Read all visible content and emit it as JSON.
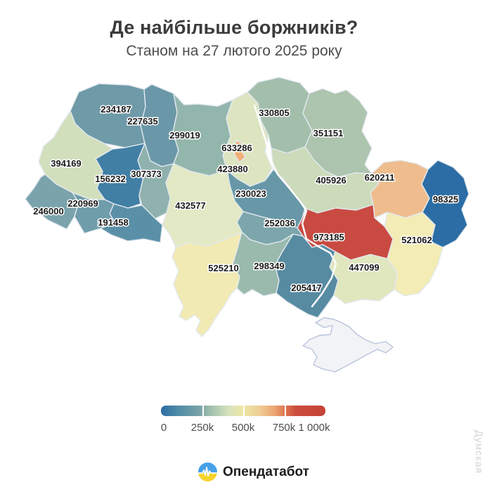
{
  "title": "Де найбільше боржників?",
  "subtitle": "Станом на 27 лютого 2025 року",
  "watermark": "Думская",
  "footer": {
    "brand": "Опендатабот"
  },
  "legend": {
    "ticks": [
      "0",
      "250k",
      "500k",
      "750k",
      "1 000k"
    ]
  },
  "chart_data": {
    "type": "choropleth",
    "title": "Де найбільше боржників?",
    "subtitle": "Станом на 27 лютого 2025 року",
    "unit": "debtors per region",
    "scale": {
      "min": 0,
      "max": 1000000,
      "palette": [
        "#2b6da4",
        "#6d9cab",
        "#9fbfad",
        "#d6e2bd",
        "#ece8a6",
        "#f0cd94",
        "#eda671",
        "#dd7250",
        "#c94a41"
      ],
      "no_data_color": "#f2f3f6"
    },
    "regions": [
      {
        "id": "volyn",
        "name": "Volyn",
        "value": 234187,
        "color": "#6f9aa8",
        "label": [
          165,
          156
        ]
      },
      {
        "id": "rivne",
        "name": "Rivne",
        "value": 227635,
        "color": "#6b98a8",
        "label": [
          203,
          173
        ]
      },
      {
        "id": "zhytomyr",
        "name": "Zhytomyr",
        "value": 299019,
        "color": "#93b6ac",
        "label": [
          263,
          193
        ]
      },
      {
        "id": "kyiv-oblast",
        "name": "Kyiv oblast",
        "value": 423880,
        "color": "#dce5c0",
        "label": [
          331,
          241
        ]
      },
      {
        "id": "chernihiv",
        "name": "Chernihiv",
        "value": 330805,
        "color": "#a3bfac",
        "label": [
          390,
          161
        ]
      },
      {
        "id": "sumy",
        "name": "Sumy",
        "value": 351151,
        "color": "#adc4ae",
        "label": [
          467,
          190
        ]
      },
      {
        "id": "poltava",
        "name": "Poltava",
        "value": 405926,
        "color": "#ccdbba",
        "label": [
          471,
          257
        ]
      },
      {
        "id": "kharkiv",
        "name": "Kharkiv",
        "value": 620211,
        "color": "#efbd8d",
        "label": [
          540,
          253
        ]
      },
      {
        "id": "luhansk",
        "name": "Luhansk",
        "value": 98325,
        "color": "#2b6da4",
        "label": [
          634,
          284
        ]
      },
      {
        "id": "donetsk",
        "name": "Donetsk",
        "value": 521062,
        "color": "#f3ecb5",
        "label": [
          593,
          342
        ]
      },
      {
        "id": "dnipropetrovsk",
        "name": "Dnipropetrovsk",
        "value": 973185,
        "color": "#c94a41",
        "label": [
          468,
          338
        ]
      },
      {
        "id": "zaporizhzhia",
        "name": "Zaporizhzhia",
        "value": 447099,
        "color": "#e0e6bd",
        "label": [
          518,
          381
        ]
      },
      {
        "id": "kherson",
        "name": "Kherson",
        "value": 205417,
        "color": "#578ba1",
        "label": [
          436,
          410
        ]
      },
      {
        "id": "mykolaiv",
        "name": "Mykolaiv",
        "value": 298349,
        "color": "#9abaad",
        "label": [
          383,
          379
        ]
      },
      {
        "id": "odesa",
        "name": "Odesa",
        "value": 525210,
        "color": "#f2eab3",
        "label": [
          318,
          382
        ]
      },
      {
        "id": "kirovohrad",
        "name": "Kirovohrad",
        "value": 252036,
        "color": "#7ca6ab",
        "label": [
          398,
          318
        ]
      },
      {
        "id": "cherkasy",
        "name": "Cherkasy",
        "value": 230023,
        "color": "#6898a8",
        "label": [
          357,
          276
        ]
      },
      {
        "id": "vinnytsia",
        "name": "Vinnytsia",
        "value": 432577,
        "color": "#e3e9c4",
        "label": [
          271,
          293
        ]
      },
      {
        "id": "khmelnytskyi",
        "name": "Khmelnytskyi",
        "value": 307373,
        "color": "#8fb2ae",
        "label": [
          208,
          248
        ]
      },
      {
        "id": "ternopil",
        "name": "Ternopil",
        "value": 156232,
        "color": "#417fa5",
        "label": [
          157,
          255
        ]
      },
      {
        "id": "lviv",
        "name": "Lviv",
        "value": 394169,
        "color": "#d2dfbc",
        "label": [
          94,
          233
        ]
      },
      {
        "id": "zakarpattia",
        "name": "Zakarpattia",
        "value": 246000,
        "color": "#7aa3ac",
        "label": [
          69,
          301
        ]
      },
      {
        "id": "ivano-frankivsk",
        "name": "Ivano-Frankivsk",
        "value": 220969,
        "color": "#6f9daa",
        "label": [
          118,
          290
        ]
      },
      {
        "id": "chernivtsi",
        "name": "Chernivtsi",
        "value": 191458,
        "color": "#5a90a7",
        "label": [
          161,
          317
        ]
      },
      {
        "id": "kyiv-city",
        "name": "Kyiv city",
        "value": 633286,
        "color": "#f2ae76",
        "label": [
          337,
          211
        ]
      },
      {
        "id": "crimea",
        "name": "Crimea",
        "value": null,
        "color": "#f2f3f6",
        "border": "#b8c3dd"
      }
    ]
  }
}
